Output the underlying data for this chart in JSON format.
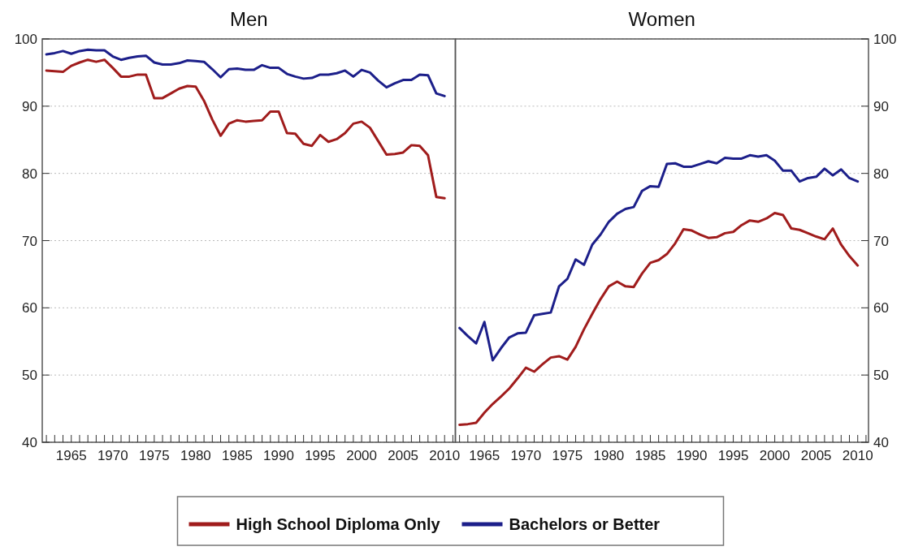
{
  "chart_data": [
    {
      "type": "line",
      "title": "Men",
      "x": [
        1962,
        1963,
        1964,
        1965,
        1966,
        1967,
        1968,
        1969,
        1970,
        1971,
        1972,
        1973,
        1974,
        1975,
        1976,
        1977,
        1978,
        1979,
        1980,
        1981,
        1982,
        1983,
        1984,
        1985,
        1986,
        1987,
        1988,
        1989,
        1990,
        1991,
        1992,
        1993,
        1994,
        1995,
        1996,
        1997,
        1998,
        1999,
        2000,
        2001,
        2002,
        2003,
        2004,
        2005,
        2006,
        2007,
        2008,
        2009,
        2010
      ],
      "series": [
        {
          "name": "High School Diploma Only",
          "color": "#a01c1c",
          "values": [
            95.3,
            95.2,
            95.1,
            96.0,
            96.5,
            96.9,
            96.6,
            96.9,
            95.7,
            94.4,
            94.4,
            94.7,
            94.7,
            91.2,
            91.2,
            91.9,
            92.6,
            93.0,
            92.9,
            90.8,
            88.0,
            85.6,
            87.4,
            87.9,
            87.7,
            87.8,
            87.9,
            89.2,
            89.2,
            86.0,
            85.9,
            84.4,
            84.1,
            85.7,
            84.7,
            85.1,
            86.0,
            87.4,
            87.7,
            86.8,
            84.8,
            82.8,
            82.9,
            83.1,
            84.2,
            84.1,
            82.7,
            76.5,
            76.3
          ]
        },
        {
          "name": "Bachelors or Better",
          "color": "#1c1f8a",
          "values": [
            97.7,
            97.9,
            98.2,
            97.8,
            98.2,
            98.4,
            98.3,
            98.3,
            97.4,
            96.9,
            97.2,
            97.4,
            97.5,
            96.5,
            96.2,
            96.2,
            96.4,
            96.8,
            96.7,
            96.6,
            95.5,
            94.3,
            95.5,
            95.6,
            95.4,
            95.4,
            96.1,
            95.7,
            95.7,
            94.8,
            94.4,
            94.1,
            94.2,
            94.7,
            94.7,
            94.9,
            95.3,
            94.4,
            95.4,
            95.0,
            93.8,
            92.8,
            93.4,
            93.9,
            93.9,
            94.7,
            94.6,
            91.9,
            91.5
          ]
        }
      ],
      "xlim": [
        1961.5,
        2011.3
      ],
      "ylim": [
        40,
        100
      ],
      "yticks": [
        40,
        50,
        60,
        70,
        80,
        90,
        100
      ],
      "xticks": [
        {
          "value": 1962,
          "label": null
        },
        {
          "value": 1963,
          "label": null
        },
        {
          "value": 1964,
          "label": null
        },
        1965,
        {
          "value": 1966,
          "label": null
        },
        {
          "value": 1967,
          "label": null
        },
        {
          "value": 1968,
          "label": null
        },
        {
          "value": 1969,
          "label": null
        },
        1970,
        {
          "value": 1971,
          "label": null
        },
        {
          "value": 1972,
          "label": null
        },
        {
          "value": 1973,
          "label": null
        },
        {
          "value": 1974,
          "label": null
        },
        1975,
        {
          "value": 1976,
          "label": null
        },
        {
          "value": 1977,
          "label": null
        },
        {
          "value": 1978,
          "label": null
        },
        {
          "value": 1979,
          "label": null
        },
        1980,
        {
          "value": 1981,
          "label": null
        },
        {
          "value": 1982,
          "label": null
        },
        {
          "value": 1983,
          "label": null
        },
        {
          "value": 1984,
          "label": null
        },
        1985,
        {
          "value": 1986,
          "label": null
        },
        {
          "value": 1987,
          "label": null
        },
        {
          "value": 1988,
          "label": null
        },
        {
          "value": 1989,
          "label": null
        },
        1990,
        {
          "value": 1991,
          "label": null
        },
        {
          "value": 1992,
          "label": null
        },
        {
          "value": 1993,
          "label": null
        },
        {
          "value": 1994,
          "label": null
        },
        1995,
        {
          "value": 1996,
          "label": null
        },
        {
          "value": 1997,
          "label": null
        },
        {
          "value": 1998,
          "label": null
        },
        {
          "value": 1999,
          "label": null
        },
        2000,
        {
          "value": 2001,
          "label": null
        },
        {
          "value": 2002,
          "label": null
        },
        {
          "value": 2003,
          "label": null
        },
        {
          "value": 2004,
          "label": null
        },
        2005,
        {
          "value": 2006,
          "label": null
        },
        {
          "value": 2007,
          "label": null
        },
        {
          "value": 2008,
          "label": null
        },
        {
          "value": 2009,
          "label": null
        },
        2010,
        {
          "value": 2011,
          "label": null
        }
      ],
      "grid": "y",
      "legend": "bottom",
      "marker": "none",
      "line_style": "solid"
    },
    {
      "type": "line",
      "title": "Women",
      "x": [
        1962,
        1963,
        1964,
        1965,
        1966,
        1967,
        1968,
        1969,
        1970,
        1971,
        1972,
        1973,
        1974,
        1975,
        1976,
        1977,
        1978,
        1979,
        1980,
        1981,
        1982,
        1983,
        1984,
        1985,
        1986,
        1987,
        1988,
        1989,
        1990,
        1991,
        1992,
        1993,
        1994,
        1995,
        1996,
        1997,
        1998,
        1999,
        2000,
        2001,
        2002,
        2003,
        2004,
        2005,
        2006,
        2007,
        2008,
        2009,
        2010
      ],
      "series": [
        {
          "color": "#a01c1c",
          "values": [
            42.6,
            42.7,
            42.9,
            44.4,
            45.7,
            46.8,
            48.0,
            49.5,
            51.1,
            50.5,
            51.6,
            52.6,
            52.8,
            52.3,
            54.2,
            56.8,
            59.1,
            61.3,
            63.2,
            63.9,
            63.2,
            63.1,
            65.1,
            66.7,
            67.1,
            68.0,
            69.6,
            71.7,
            71.5,
            70.9,
            70.4,
            70.5,
            71.1,
            71.3,
            72.3,
            73.0,
            72.8,
            73.3,
            74.1,
            73.8,
            71.8,
            71.6,
            71.1,
            70.6,
            70.2,
            71.8,
            69.4,
            67.7,
            66.3
          ]
        },
        {
          "color": "#1c1f8a",
          "values": [
            57.0,
            55.8,
            54.7,
            57.9,
            52.2,
            54.0,
            55.6,
            56.2,
            56.3,
            58.9,
            59.1,
            59.3,
            63.2,
            64.3,
            67.2,
            66.4,
            69.4,
            70.9,
            72.8,
            74.0,
            74.7,
            75.0,
            77.4,
            78.1,
            78.0,
            81.4,
            81.5,
            81.0,
            81.0,
            81.4,
            81.8,
            81.5,
            82.3,
            82.2,
            82.2,
            82.7,
            82.5,
            82.7,
            81.9,
            80.4,
            80.4,
            78.8,
            79.3,
            79.5,
            80.7,
            79.7,
            80.6,
            79.3,
            78.8
          ]
        }
      ],
      "xlim": [
        1961.5,
        2011.3
      ],
      "ylim": [
        40,
        100
      ],
      "yticks": [
        40,
        50,
        60,
        70,
        80,
        90,
        100
      ],
      "xticks": [
        {
          "value": 1962,
          "label": null
        },
        {
          "value": 1963,
          "label": null
        },
        {
          "value": 1964,
          "label": null
        },
        1965,
        {
          "value": 1966,
          "label": null
        },
        {
          "value": 1967,
          "label": null
        },
        {
          "value": 1968,
          "label": null
        },
        {
          "value": 1969,
          "label": null
        },
        1970,
        {
          "value": 1971,
          "label": null
        },
        {
          "value": 1972,
          "label": null
        },
        {
          "value": 1973,
          "label": null
        },
        {
          "value": 1974,
          "label": null
        },
        1975,
        {
          "value": 1976,
          "label": null
        },
        {
          "value": 1977,
          "label": null
        },
        {
          "value": 1978,
          "label": null
        },
        {
          "value": 1979,
          "label": null
        },
        1980,
        {
          "value": 1981,
          "label": null
        },
        {
          "value": 1982,
          "label": null
        },
        {
          "value": 1983,
          "label": null
        },
        {
          "value": 1984,
          "label": null
        },
        1985,
        {
          "value": 1986,
          "label": null
        },
        {
          "value": 1987,
          "label": null
        },
        {
          "value": 1988,
          "label": null
        },
        {
          "value": 1989,
          "label": null
        },
        1990,
        {
          "value": 1991,
          "label": null
        },
        {
          "value": 1992,
          "label": null
        },
        {
          "value": 1993,
          "label": null
        },
        {
          "value": 1994,
          "label": null
        },
        1995,
        {
          "value": 1996,
          "label": null
        },
        {
          "value": 1997,
          "label": null
        },
        {
          "value": 1998,
          "label": null
        },
        {
          "value": 1999,
          "label": null
        },
        2000,
        {
          "value": 2001,
          "label": null
        },
        {
          "value": 2002,
          "label": null
        },
        {
          "value": 2003,
          "label": null
        },
        {
          "value": 2004,
          "label": null
        },
        2005,
        {
          "value": 2006,
          "label": null
        },
        {
          "value": 2007,
          "label": null
        },
        {
          "value": 2008,
          "label": null
        },
        {
          "value": 2009,
          "label": null
        },
        2010,
        {
          "value": 2011,
          "label": null
        }
      ],
      "grid": "y",
      "marker": "none",
      "line_style": "solid"
    }
  ]
}
